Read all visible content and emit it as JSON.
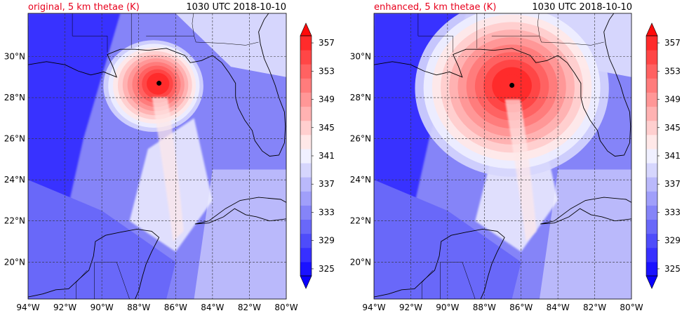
{
  "chart_data": [
    {
      "type": "heatmap",
      "title_left": "original, 5 km thetae (K)",
      "title_right": "1030 UTC 2018-10-10",
      "xlim": [
        -94,
        -80
      ],
      "ylim": [
        18.2,
        32.1
      ],
      "x_ticks": [
        "94°W",
        "92°W",
        "90°W",
        "88°W",
        "86°W",
        "84°W",
        "82°W",
        "80°W"
      ],
      "y_ticks": [
        "30°N",
        "28°N",
        "26°N",
        "24°N",
        "22°N",
        "20°N"
      ],
      "colorbar_ticks": [
        "325",
        "329",
        "333",
        "337",
        "341",
        "345",
        "349",
        "353",
        "357"
      ],
      "colorbar_range": [
        325,
        359
      ],
      "storm_center": [
        -86.9,
        28.7
      ],
      "eye_theta": 359,
      "core_radius_deg": 1.6,
      "grid": true
    },
    {
      "type": "heatmap",
      "title_left": "enhanced, 5 km thetae (K)",
      "title_right": "1030 UTC 2018-10-10",
      "xlim": [
        -94,
        -80
      ],
      "ylim": [
        18.2,
        32.1
      ],
      "x_ticks": [
        "94°W",
        "92°W",
        "90°W",
        "88°W",
        "86°W",
        "84°W",
        "82°W",
        "80°W"
      ],
      "y_ticks": [
        "30°N",
        "28°N",
        "26°N",
        "24°N",
        "22°N",
        "20°N"
      ],
      "colorbar_ticks": [
        "325",
        "329",
        "333",
        "337",
        "341",
        "345",
        "349",
        "353",
        "357"
      ],
      "colorbar_range": [
        325,
        359
      ],
      "storm_center": [
        -86.5,
        28.6
      ],
      "eye_theta": 359,
      "core_radius_deg": 3.2,
      "grid": true
    }
  ]
}
